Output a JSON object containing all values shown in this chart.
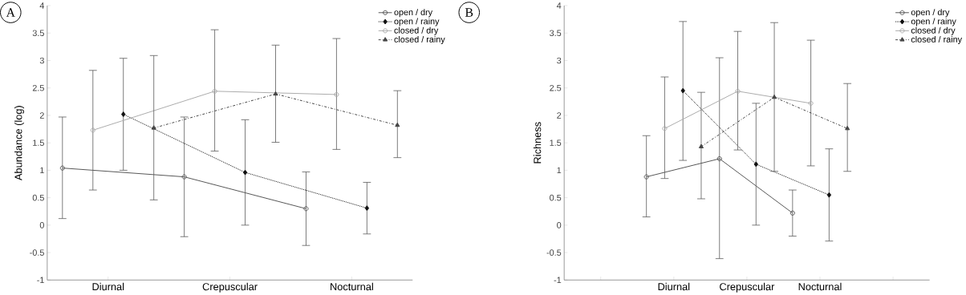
{
  "chart_data": [
    {
      "type": "line",
      "categories": [
        "Diurnal",
        "Crepuscular",
        "Nocturnal"
      ],
      "ylabel": "Abundance (log)",
      "ylim": [
        -1,
        4
      ],
      "yticks": [
        -1,
        -0.5,
        0,
        0.5,
        1,
        1.5,
        2,
        2.5,
        3,
        3.5,
        4
      ],
      "grid": false,
      "legend": "top right",
      "annotations": [
        "A"
      ],
      "series": [
        {
          "name": "open / dry",
          "color": "#555555",
          "marker": "circle",
          "line_style": "solid",
          "values": [
            1.04,
            0.88,
            0.3
          ],
          "errors": [
            [
              0.12,
              1.97
            ],
            [
              -0.21,
              1.97
            ],
            [
              -0.37,
              0.97
            ]
          ]
        },
        {
          "name": "open / rainy",
          "color": "#111111",
          "marker": "diamond",
          "line_style": "dotted",
          "values": [
            2.02,
            0.96,
            0.31
          ],
          "errors": [
            [
              1.0,
              3.04
            ],
            [
              0.0,
              1.92
            ],
            [
              -0.16,
              0.78
            ]
          ]
        },
        {
          "name": "closed / dry",
          "color": "#aaaaaa",
          "marker": "circle",
          "line_style": "solid",
          "values": [
            1.73,
            2.44,
            2.38
          ],
          "errors": [
            [
              0.64,
              2.82
            ],
            [
              1.35,
              3.56
            ],
            [
              1.38,
              3.4
            ]
          ]
        },
        {
          "name": "closed / rainy",
          "color": "#444444",
          "marker": "triangle",
          "line_style": "dashed",
          "values": [
            1.77,
            2.39,
            1.82
          ],
          "errors": [
            [
              0.46,
              3.09
            ],
            [
              1.51,
              3.28
            ],
            [
              1.23,
              2.45
            ]
          ]
        }
      ]
    },
    {
      "type": "line",
      "categories": [
        null,
        "Diurnal",
        "Crepuscular",
        "Nocturnal",
        null
      ],
      "ylabel": "Richness",
      "ylim": [
        -1,
        4
      ],
      "yticks": [
        -1,
        -0.5,
        0,
        0.5,
        1,
        1.5,
        2,
        2.5,
        3,
        3.5,
        4
      ],
      "grid": false,
      "legend": "top right",
      "annotations": [
        "B"
      ],
      "series": [
        {
          "name": "open / dry",
          "color": "#555555",
          "marker": "circle",
          "line_style": "solid",
          "values": [
            null,
            0.88,
            1.21,
            0.22,
            null
          ],
          "errors": [
            null,
            [
              0.15,
              1.63
            ],
            [
              -0.61,
              3.05
            ],
            [
              -0.2,
              0.64
            ],
            null
          ]
        },
        {
          "name": "open / rainy",
          "color": "#111111",
          "marker": "diamond",
          "line_style": "dotted",
          "values": [
            null,
            2.45,
            1.11,
            0.55,
            null
          ],
          "errors": [
            null,
            [
              1.18,
              3.71
            ],
            [
              0.0,
              2.22
            ],
            [
              -0.29,
              1.39
            ],
            null
          ]
        },
        {
          "name": "closed / dry",
          "color": "#aaaaaa",
          "marker": "circle",
          "line_style": "solid",
          "values": [
            null,
            1.76,
            2.44,
            2.22,
            null
          ],
          "errors": [
            null,
            [
              0.85,
              2.7
            ],
            [
              1.37,
              3.53
            ],
            [
              1.08,
              3.37
            ],
            null
          ]
        },
        {
          "name": "closed / rainy",
          "color": "#444444",
          "marker": "triangle",
          "line_style": "dashed",
          "values": [
            null,
            1.43,
            2.33,
            1.76,
            null
          ],
          "errors": [
            null,
            [
              0.48,
              2.42
            ],
            [
              0.98,
              3.69
            ],
            [
              0.98,
              2.58
            ],
            null
          ]
        }
      ]
    }
  ]
}
